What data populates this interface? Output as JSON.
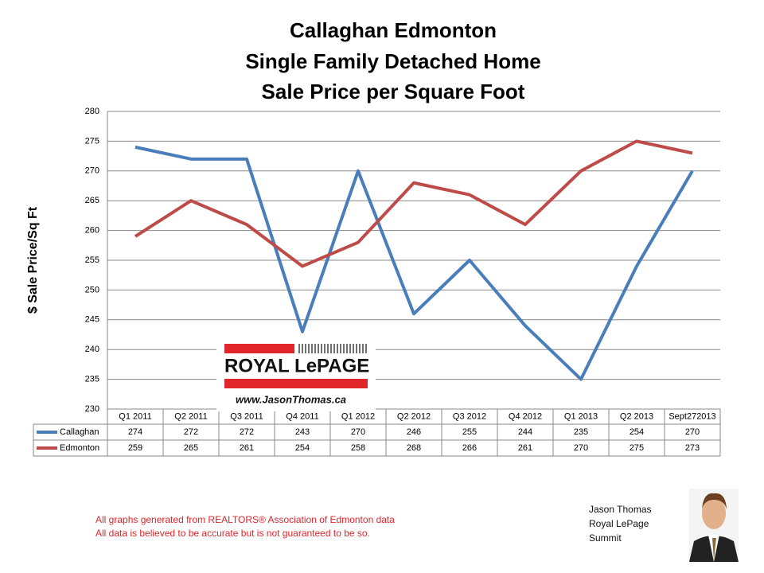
{
  "chart_data": {
    "type": "line",
    "title": [
      "Callaghan Edmonton",
      "Single Family Detached Home",
      "Sale Price per Square Foot"
    ],
    "y_label": "$ Sale Price/Sq Ft",
    "categories": [
      "Q1 2011",
      "Q2 2011",
      "Q3 2011",
      "Q4 2011",
      "Q1 2012",
      "Q2 2012",
      "Q3 2012",
      "Q4 2012",
      "Q1 2013",
      "Q2 2013",
      "Sept272013"
    ],
    "series": [
      {
        "name": "Callaghan",
        "color": "#4a7ebb",
        "values": [
          274,
          272,
          272,
          243,
          270,
          246,
          255,
          244,
          235,
          254,
          270
        ]
      },
      {
        "name": "Edmonton",
        "color": "#be4b48",
        "values": [
          259,
          265,
          261,
          254,
          258,
          268,
          266,
          261,
          270,
          275,
          273
        ]
      }
    ],
    "ylim": [
      230,
      280
    ],
    "yticks": [
      230,
      235,
      240,
      245,
      250,
      255,
      260,
      265,
      270,
      275,
      280
    ],
    "grid": true
  },
  "logo": {
    "brand": "ROYAL LePAGE",
    "url": "www.JasonThomas.ca"
  },
  "notes": [
    "All graphs generated from REALTORS® Association of Edmonton data",
    "All data is believed to be accurate but is not guaranteed to be so."
  ],
  "signature": [
    "Jason Thomas",
    "Royal LePage",
    "Summit"
  ]
}
